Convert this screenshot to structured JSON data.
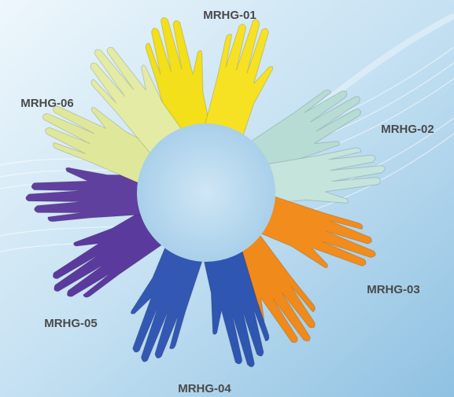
{
  "labels": [
    "MRHG-01",
    "MRHG-02",
    "MRHG-03",
    "MRHG-04",
    "MRHG-05",
    "MRHG-06"
  ]
}
